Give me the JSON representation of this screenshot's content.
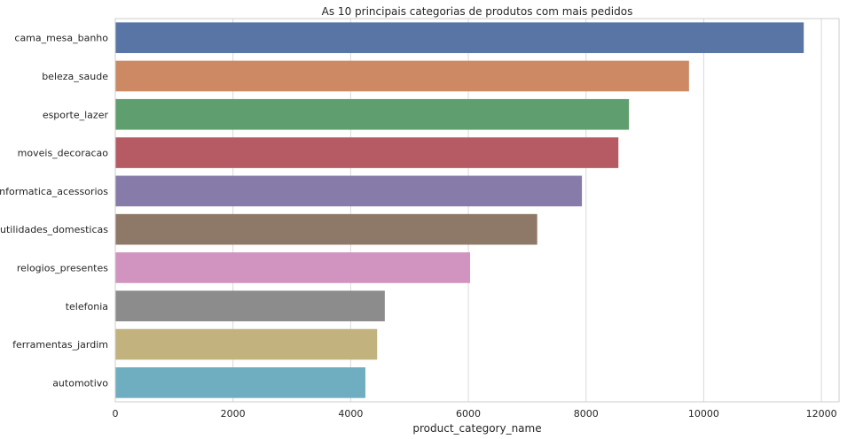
{
  "chart_data": {
    "type": "bar",
    "orientation": "horizontal",
    "title": "As 10 principais categorias de produtos com mais pedidos",
    "xlabel": "product_category_name",
    "ylabel": "",
    "xlim": [
      0,
      12300
    ],
    "xticks": [
      0,
      2000,
      4000,
      6000,
      8000,
      10000,
      12000
    ],
    "grid": true,
    "categories": [
      "cama_mesa_banho",
      "beleza_saude",
      "esporte_lazer",
      "moveis_decoracao",
      "informatica_acessorios",
      "utilidades_domesticas",
      "relogios_presentes",
      "telefonia",
      "ferramentas_jardim",
      "automotivo"
    ],
    "values": [
      11700,
      9750,
      8730,
      8550,
      7930,
      7170,
      6030,
      4580,
      4450,
      4250
    ],
    "colors": [
      "#5875a6",
      "#cd8963",
      "#5f9f6f",
      "#b65b63",
      "#877baa",
      "#8e7867",
      "#d193c0",
      "#8c8c8c",
      "#c2b27e",
      "#6eaec0"
    ]
  }
}
